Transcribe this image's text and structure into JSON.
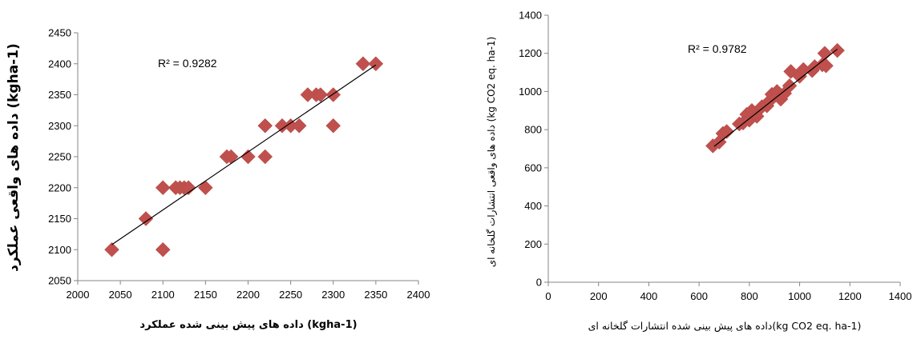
{
  "chart_data": [
    {
      "type": "scatter",
      "title": "",
      "xlabel": "داده های پیش بینی شده عملکرد (kgha-1)",
      "ylabel": "داده های واقعی عملکرد (kgha-1)",
      "xlim": [
        2000,
        2400
      ],
      "ylim": [
        2050,
        2450
      ],
      "x_ticks": [
        "2000",
        "2050",
        "2100",
        "2150",
        "2200",
        "2250",
        "2300",
        "2350",
        "2400"
      ],
      "y_ticks": [
        "2050",
        "2100",
        "2150",
        "2200",
        "2250",
        "2300",
        "2350",
        "2400",
        "2450"
      ],
      "annotation": "R² = 0.9282",
      "marker_color": "#c0504d",
      "trendline_color": "#000000",
      "trendline": {
        "x": [
          2040,
          2350
        ],
        "y": [
          2108,
          2398
        ]
      },
      "points": [
        [
          2040,
          2100
        ],
        [
          2080,
          2150
        ],
        [
          2100,
          2200
        ],
        [
          2100,
          2100
        ],
        [
          2115,
          2200
        ],
        [
          2120,
          2200
        ],
        [
          2125,
          2200
        ],
        [
          2130,
          2200
        ],
        [
          2150,
          2200
        ],
        [
          2175,
          2250
        ],
        [
          2180,
          2250
        ],
        [
          2200,
          2250
        ],
        [
          2220,
          2300
        ],
        [
          2220,
          2250
        ],
        [
          2240,
          2300
        ],
        [
          2250,
          2300
        ],
        [
          2260,
          2300
        ],
        [
          2270,
          2350
        ],
        [
          2280,
          2350
        ],
        [
          2285,
          2350
        ],
        [
          2300,
          2350
        ],
        [
          2300,
          2300
        ],
        [
          2335,
          2400
        ],
        [
          2350,
          2400
        ]
      ]
    },
    {
      "type": "scatter",
      "title": "",
      "xlabel": "داده های پیش بینی شده انتشارات گلخانه ای(kg CO2 eq. ha-1)",
      "ylabel": "داده های واقعی انتشارات گلخانه ای (kg CO2 eq. ha-1)",
      "xlim": [
        0,
        1400
      ],
      "ylim": [
        0,
        1400
      ],
      "x_ticks": [
        "0",
        "200",
        "400",
        "600",
        "800",
        "1000",
        "1200",
        "1400"
      ],
      "y_ticks": [
        "0",
        "200",
        "400",
        "600",
        "800",
        "1000",
        "1200",
        "1400"
      ],
      "annotation": "R² = 0.9782",
      "marker_color": "#c0504d",
      "trendline_color": "#000000",
      "trendline": {
        "x": [
          660,
          1150
        ],
        "y": [
          712,
          1222
        ]
      },
      "points": [
        [
          655,
          715
        ],
        [
          680,
          735
        ],
        [
          695,
          780
        ],
        [
          710,
          790
        ],
        [
          760,
          830
        ],
        [
          775,
          835
        ],
        [
          790,
          880
        ],
        [
          800,
          850
        ],
        [
          810,
          900
        ],
        [
          830,
          870
        ],
        [
          850,
          920
        ],
        [
          870,
          925
        ],
        [
          880,
          950
        ],
        [
          890,
          985
        ],
        [
          910,
          1000
        ],
        [
          925,
          960
        ],
        [
          940,
          990
        ],
        [
          960,
          1030
        ],
        [
          965,
          1105
        ],
        [
          1000,
          1080
        ],
        [
          1015,
          1115
        ],
        [
          1050,
          1110
        ],
        [
          1060,
          1130
        ],
        [
          1090,
          1140
        ],
        [
          1100,
          1200
        ],
        [
          1105,
          1135
        ],
        [
          1150,
          1215
        ]
      ]
    }
  ]
}
